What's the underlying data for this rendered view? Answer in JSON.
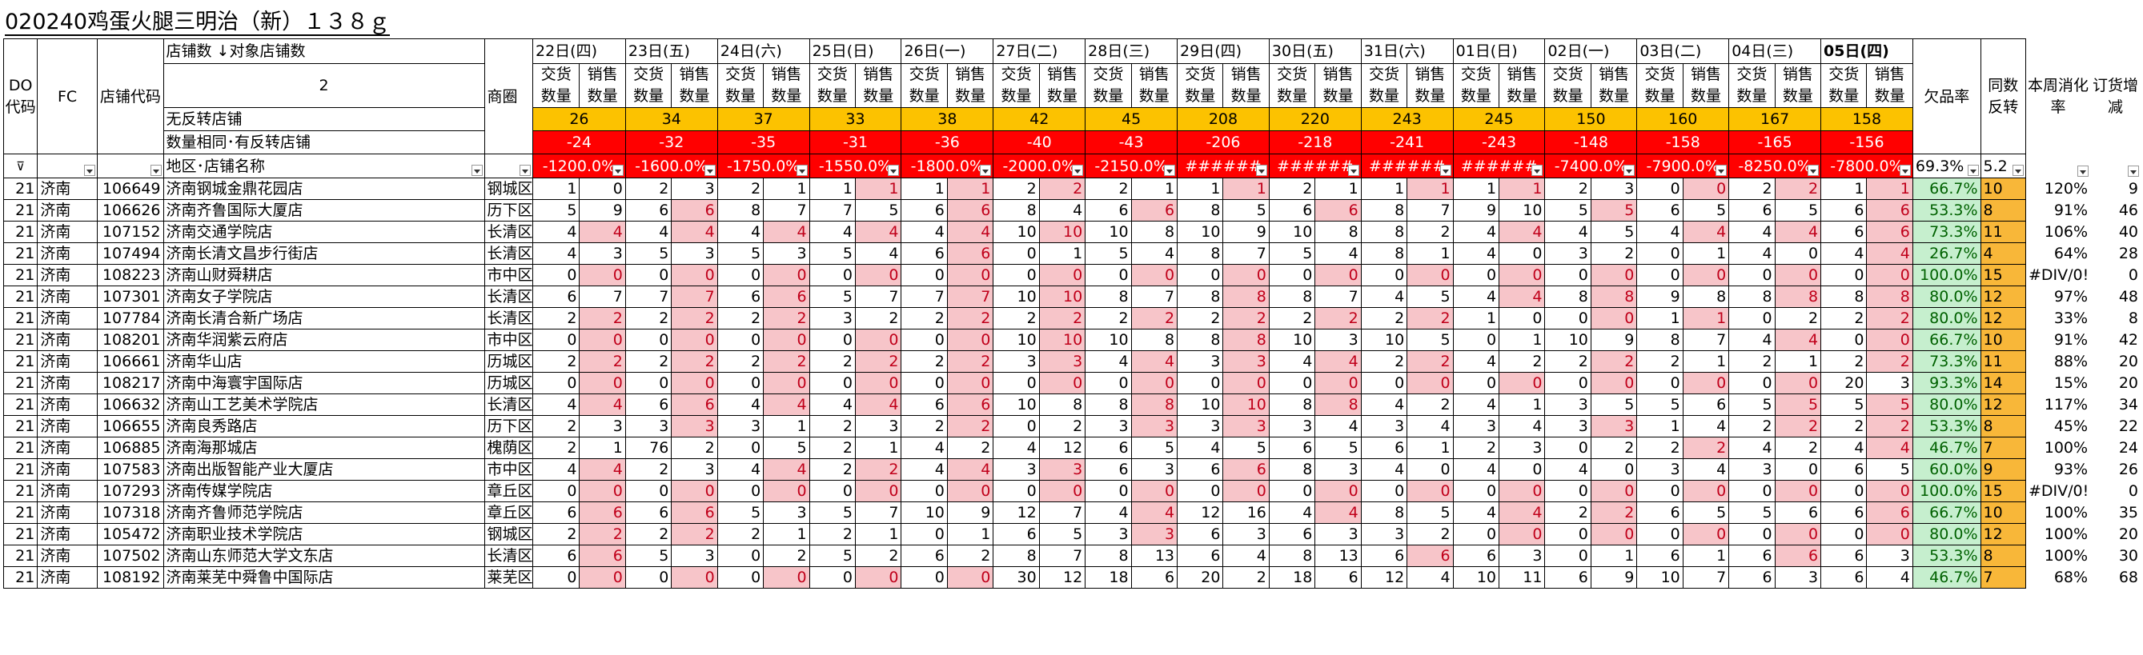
{
  "title": "020240鸡蛋火腿三明治（新）１３８ｇ",
  "header": {
    "do_code": "DO代码",
    "fc": "FC",
    "store_code": "店铺代码",
    "store_count_label": "店铺数",
    "target_store_count_label": "对象店铺数",
    "store_count_value": "2",
    "district": "商圈",
    "no_reverse_label": "无反转店铺",
    "same_qty_label": "数量相同･有反转店铺",
    "region_store_label": "地区･店铺名称",
    "stockout_rate_label": "欠品率",
    "same_reverse_label": "同数反转",
    "weekly_digest_label": "本周消化率",
    "order_change_label": "订货增减",
    "sub_delivery": "交货数量",
    "sub_sales": "销售数量",
    "stockout_summary": "69.3%",
    "same_reverse_summary": "5.2",
    "dates": [
      "22日(四)",
      "23日(五)",
      "24日(六)",
      "25日(日)",
      "26日(一)",
      "27日(二)",
      "28日(三)",
      "29日(四)",
      "30日(五)",
      "31日(六)",
      "01日(日)",
      "02日(一)",
      "03日(二)",
      "04日(三)",
      "05日(四)"
    ],
    "no_reverse_counts": [
      "26",
      "34",
      "37",
      "33",
      "38",
      "42",
      "45",
      "208",
      "220",
      "243",
      "245",
      "150",
      "160",
      "167",
      "158"
    ],
    "same_qty_counts": [
      "-24",
      "-32",
      "-35",
      "-31",
      "-36",
      "-40",
      "-43",
      "-206",
      "-218",
      "-241",
      "-243",
      "-148",
      "-158",
      "-165",
      "-156"
    ],
    "filter_values": [
      "-1200.0%",
      "-1600.0%",
      "-1750.0%",
      "-1550.0%",
      "-1800.0%",
      "-2000.0%",
      "-2150.0%",
      "######",
      "######",
      "######",
      "######",
      "-7400.0%",
      "-7900.0%",
      "-8250.0%",
      "-7800.0%"
    ]
  },
  "colors": {
    "yellow": "#fcc200",
    "red": "#ff0000",
    "pink": "#f7c5c9",
    "green": "#c6efce",
    "orange": "#f8b739"
  },
  "icons": {
    "filter": "filter-funnel-icon",
    "dropdown": "chevron-down-icon",
    "sort": "sort-arrow-icon"
  },
  "rows": [
    {
      "do": "21",
      "fc": "济南",
      "code": "106649",
      "name": "济南钢城金鼎花园店",
      "area": "钢城区",
      "v": [
        "1",
        "0",
        "2",
        "3",
        "2",
        "1",
        "1",
        "1",
        "1",
        "1",
        "2",
        "2",
        "2",
        "1",
        "1",
        "1",
        "2",
        "1",
        "1",
        "1",
        "1",
        "1",
        "2",
        "3",
        "0",
        "0",
        "2",
        "2",
        "1",
        "1"
      ],
      "rate": "66.7%",
      "same": "10",
      "digest": "120%",
      "order": "9"
    },
    {
      "do": "21",
      "fc": "济南",
      "code": "106626",
      "name": "济南齐鲁国际大厦店",
      "area": "历下区",
      "v": [
        "5",
        "9",
        "6",
        "6",
        "8",
        "7",
        "7",
        "5",
        "6",
        "6",
        "8",
        "4",
        "6",
        "6",
        "8",
        "5",
        "6",
        "6",
        "8",
        "7",
        "9",
        "10",
        "5",
        "5",
        "6",
        "5",
        "6",
        "5",
        "6",
        "6"
      ],
      "rate": "53.3%",
      "same": "8",
      "digest": "91%",
      "order": "46"
    },
    {
      "do": "21",
      "fc": "济南",
      "code": "107152",
      "name": "济南交通学院店",
      "area": "长清区",
      "v": [
        "4",
        "4",
        "4",
        "4",
        "4",
        "4",
        "4",
        "4",
        "4",
        "4",
        "10",
        "10",
        "10",
        "8",
        "10",
        "9",
        "10",
        "8",
        "8",
        "2",
        "4",
        "4",
        "4",
        "5",
        "4",
        "4",
        "4",
        "4",
        "6",
        "6"
      ],
      "rate": "73.3%",
      "same": "11",
      "digest": "106%",
      "order": "40"
    },
    {
      "do": "21",
      "fc": "济南",
      "code": "107494",
      "name": "济南长清文昌步行街店",
      "area": "长清区",
      "v": [
        "4",
        "3",
        "5",
        "3",
        "5",
        "3",
        "5",
        "4",
        "6",
        "6",
        "0",
        "1",
        "5",
        "4",
        "8",
        "7",
        "5",
        "4",
        "8",
        "1",
        "4",
        "0",
        "3",
        "2",
        "0",
        "1",
        "4",
        "0",
        "4",
        "4"
      ],
      "rate": "26.7%",
      "same": "4",
      "digest": "64%",
      "order": "28"
    },
    {
      "do": "21",
      "fc": "济南",
      "code": "108223",
      "name": "济南山财舜耕店",
      "area": "市中区",
      "v": [
        "0",
        "0",
        "0",
        "0",
        "0",
        "0",
        "0",
        "0",
        "0",
        "0",
        "0",
        "0",
        "0",
        "0",
        "0",
        "0",
        "0",
        "0",
        "0",
        "0",
        "0",
        "0",
        "0",
        "0",
        "0",
        "0",
        "0",
        "0",
        "0",
        "0"
      ],
      "rate": "100.0%",
      "same": "15",
      "digest": "#DIV/0!",
      "order": "0"
    },
    {
      "do": "21",
      "fc": "济南",
      "code": "107301",
      "name": "济南女子学院店",
      "area": "长清区",
      "v": [
        "6",
        "7",
        "7",
        "7",
        "6",
        "6",
        "5",
        "7",
        "7",
        "7",
        "10",
        "10",
        "8",
        "7",
        "8",
        "8",
        "8",
        "7",
        "4",
        "5",
        "4",
        "4",
        "8",
        "8",
        "9",
        "8",
        "8",
        "8",
        "8",
        "8"
      ],
      "rate": "80.0%",
      "same": "12",
      "digest": "97%",
      "order": "48"
    },
    {
      "do": "21",
      "fc": "济南",
      "code": "107784",
      "name": "济南长清合新广场店",
      "area": "长清区",
      "v": [
        "2",
        "2",
        "2",
        "2",
        "2",
        "2",
        "3",
        "2",
        "2",
        "2",
        "2",
        "2",
        "2",
        "2",
        "2",
        "2",
        "2",
        "2",
        "2",
        "2",
        "1",
        "0",
        "0",
        "0",
        "1",
        "1",
        "0",
        "2",
        "2",
        "2"
      ],
      "rate": "80.0%",
      "same": "12",
      "digest": "33%",
      "order": "8"
    },
    {
      "do": "21",
      "fc": "济南",
      "code": "108201",
      "name": "济南华润紫云府店",
      "area": "市中区",
      "v": [
        "0",
        "0",
        "0",
        "0",
        "0",
        "0",
        "0",
        "0",
        "0",
        "0",
        "10",
        "10",
        "10",
        "8",
        "8",
        "8",
        "10",
        "3",
        "10",
        "5",
        "0",
        "1",
        "10",
        "9",
        "8",
        "7",
        "4",
        "4",
        "0",
        "0"
      ],
      "rate": "66.7%",
      "same": "10",
      "digest": "91%",
      "order": "42"
    },
    {
      "do": "21",
      "fc": "济南",
      "code": "106661",
      "name": "济南华山店",
      "area": "历城区",
      "v": [
        "2",
        "2",
        "2",
        "2",
        "2",
        "2",
        "2",
        "2",
        "2",
        "2",
        "3",
        "3",
        "4",
        "4",
        "3",
        "3",
        "4",
        "4",
        "2",
        "2",
        "4",
        "2",
        "2",
        "2",
        "2",
        "1",
        "2",
        "1",
        "2",
        "2"
      ],
      "rate": "73.3%",
      "same": "11",
      "digest": "88%",
      "order": "20"
    },
    {
      "do": "21",
      "fc": "济南",
      "code": "108217",
      "name": "济南中海寰宇国际店",
      "area": "历城区",
      "v": [
        "0",
        "0",
        "0",
        "0",
        "0",
        "0",
        "0",
        "0",
        "0",
        "0",
        "0",
        "0",
        "0",
        "0",
        "0",
        "0",
        "0",
        "0",
        "0",
        "0",
        "0",
        "0",
        "0",
        "0",
        "0",
        "0",
        "0",
        "0",
        "20",
        "3"
      ],
      "rate": "93.3%",
      "same": "14",
      "digest": "15%",
      "order": "20"
    },
    {
      "do": "21",
      "fc": "济南",
      "code": "106632",
      "name": "济南山工艺美术学院店",
      "area": "长清区",
      "v": [
        "4",
        "4",
        "6",
        "6",
        "4",
        "4",
        "4",
        "4",
        "6",
        "6",
        "10",
        "8",
        "8",
        "8",
        "10",
        "10",
        "8",
        "8",
        "4",
        "2",
        "4",
        "1",
        "3",
        "5",
        "5",
        "6",
        "5",
        "5",
        "5",
        "5"
      ],
      "rate": "80.0%",
      "same": "12",
      "digest": "117%",
      "order": "34"
    },
    {
      "do": "21",
      "fc": "济南",
      "code": "106655",
      "name": "济南良秀路店",
      "area": "历下区",
      "v": [
        "2",
        "3",
        "3",
        "3",
        "3",
        "1",
        "2",
        "3",
        "2",
        "2",
        "0",
        "2",
        "3",
        "3",
        "3",
        "3",
        "3",
        "4",
        "3",
        "4",
        "3",
        "4",
        "3",
        "3",
        "1",
        "4",
        "2",
        "2",
        "2",
        "2"
      ],
      "rate": "53.3%",
      "same": "8",
      "digest": "45%",
      "order": "22"
    },
    {
      "do": "21",
      "fc": "济南",
      "code": "106885",
      "name": "济南海那城店",
      "area": "槐荫区",
      "v": [
        "2",
        "1",
        "76",
        "2",
        "0",
        "5",
        "2",
        "1",
        "4",
        "2",
        "4",
        "12",
        "6",
        "5",
        "4",
        "5",
        "6",
        "5",
        "6",
        "1",
        "2",
        "3",
        "0",
        "2",
        "2",
        "2",
        "4",
        "2",
        "4",
        "4"
      ],
      "rate": "46.7%",
      "same": "7",
      "digest": "100%",
      "order": "24"
    },
    {
      "do": "21",
      "fc": "济南",
      "code": "107583",
      "name": "济南出版智能产业大厦店",
      "area": "市中区",
      "v": [
        "4",
        "4",
        "2",
        "3",
        "4",
        "4",
        "2",
        "2",
        "4",
        "4",
        "3",
        "3",
        "6",
        "3",
        "6",
        "6",
        "8",
        "3",
        "4",
        "0",
        "4",
        "0",
        "4",
        "0",
        "3",
        "4",
        "3",
        "0",
        "6",
        "5"
      ],
      "rate": "60.0%",
      "same": "9",
      "digest": "93%",
      "order": "26"
    },
    {
      "do": "21",
      "fc": "济南",
      "code": "107293",
      "name": "济南传媒学院店",
      "area": "章丘区",
      "v": [
        "0",
        "0",
        "0",
        "0",
        "0",
        "0",
        "0",
        "0",
        "0",
        "0",
        "0",
        "0",
        "0",
        "0",
        "0",
        "0",
        "0",
        "0",
        "0",
        "0",
        "0",
        "0",
        "0",
        "0",
        "0",
        "0",
        "0",
        "0",
        "0",
        "0"
      ],
      "rate": "100.0%",
      "same": "15",
      "digest": "#DIV/0!",
      "order": "0"
    },
    {
      "do": "21",
      "fc": "济南",
      "code": "107318",
      "name": "济南齐鲁师范学院店",
      "area": "章丘区",
      "v": [
        "6",
        "6",
        "6",
        "6",
        "5",
        "3",
        "5",
        "7",
        "10",
        "9",
        "12",
        "7",
        "4",
        "4",
        "12",
        "16",
        "4",
        "4",
        "8",
        "5",
        "4",
        "4",
        "2",
        "2",
        "6",
        "5",
        "5",
        "6",
        "6",
        "6"
      ],
      "rate": "66.7%",
      "same": "10",
      "digest": "100%",
      "order": "35"
    },
    {
      "do": "21",
      "fc": "济南",
      "code": "105472",
      "name": "济南职业技术学院店",
      "area": "钢城区",
      "v": [
        "2",
        "2",
        "2",
        "2",
        "2",
        "1",
        "2",
        "1",
        "0",
        "1",
        "6",
        "5",
        "3",
        "3",
        "6",
        "3",
        "6",
        "3",
        "3",
        "2",
        "0",
        "0",
        "0",
        "0",
        "0",
        "0",
        "0",
        "0",
        "0",
        "0"
      ],
      "rate": "80.0%",
      "same": "12",
      "digest": "100%",
      "order": "20"
    },
    {
      "do": "21",
      "fc": "济南",
      "code": "107502",
      "name": "济南山东师范大学文东店",
      "area": "长清区",
      "v": [
        "6",
        "6",
        "5",
        "3",
        "0",
        "2",
        "5",
        "2",
        "6",
        "2",
        "8",
        "7",
        "8",
        "13",
        "6",
        "4",
        "8",
        "13",
        "6",
        "6",
        "6",
        "3",
        "0",
        "1",
        "6",
        "1",
        "6",
        "6",
        "6",
        "3"
      ],
      "rate": "53.3%",
      "same": "8",
      "digest": "100%",
      "order": "30"
    },
    {
      "do": "21",
      "fc": "济南",
      "code": "108192",
      "name": "济南莱芜中舜鲁中国际店",
      "area": "莱芜区",
      "v": [
        "0",
        "0",
        "0",
        "0",
        "0",
        "0",
        "0",
        "0",
        "0",
        "0",
        "30",
        "12",
        "18",
        "6",
        "20",
        "2",
        "18",
        "6",
        "12",
        "4",
        "10",
        "11",
        "6",
        "9",
        "10",
        "7",
        "6",
        "3",
        "6",
        "4"
      ],
      "rate": "46.7%",
      "same": "7",
      "digest": "68%",
      "order": "68"
    }
  ]
}
